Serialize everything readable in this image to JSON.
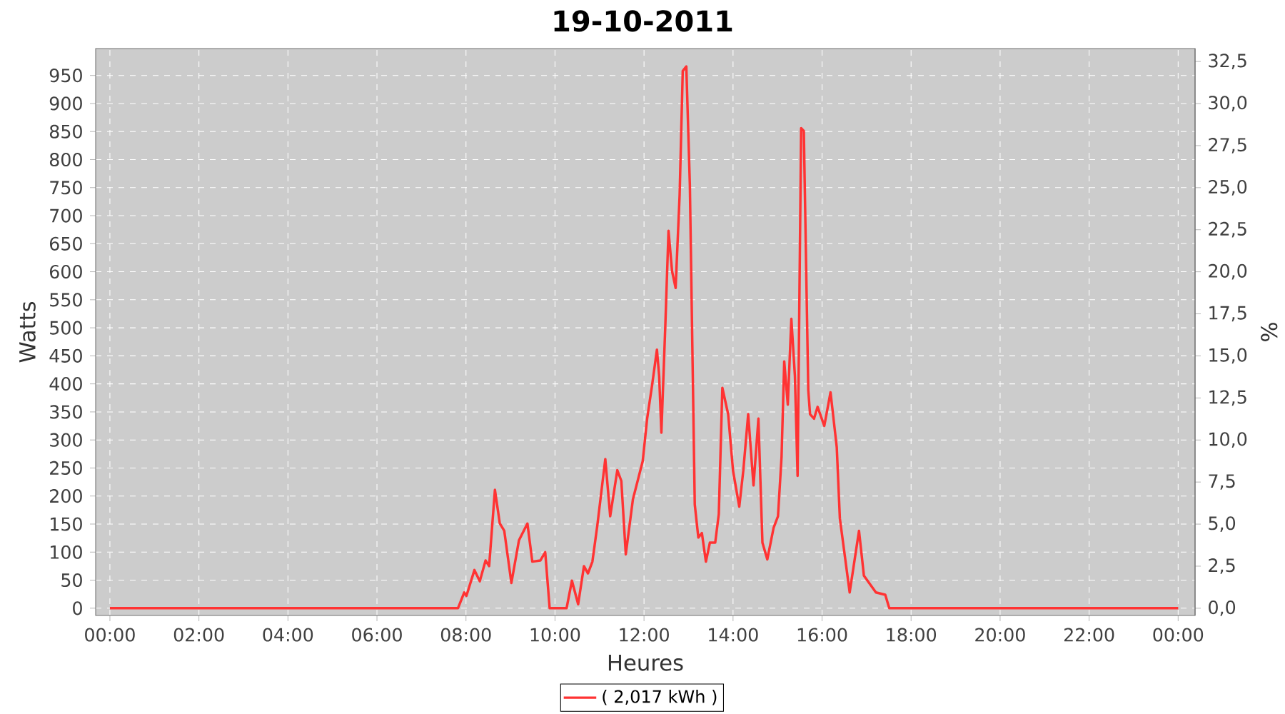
{
  "chart_data": {
    "type": "line",
    "title": "19-10-2011",
    "xlabel": "Heures",
    "ylabel": "Watts",
    "y2label": "%",
    "x": [
      0,
      7.82,
      7.96,
      8.01,
      8.19,
      8.31,
      8.44,
      8.52,
      8.65,
      8.76,
      8.86,
      9.02,
      9.19,
      9.38,
      9.49,
      9.67,
      9.78,
      9.88,
      10.26,
      10.38,
      10.52,
      10.65,
      10.74,
      10.84,
      10.95,
      11.13,
      11.24,
      11.4,
      11.49,
      11.59,
      11.75,
      11.97,
      12.07,
      12.18,
      12.29,
      12.34,
      12.39,
      12.48,
      12.55,
      12.63,
      12.71,
      12.8,
      12.87,
      12.95,
      13.03,
      13.14,
      13.22,
      13.3,
      13.39,
      13.48,
      13.6,
      13.68,
      13.76,
      13.89,
      14.0,
      14.14,
      14.23,
      14.34,
      14.46,
      14.57,
      14.66,
      14.77,
      14.91,
      15.01,
      15.09,
      15.15,
      15.23,
      15.31,
      15.39,
      15.45,
      15.53,
      15.59,
      15.69,
      15.73,
      15.82,
      15.9,
      16.05,
      16.19,
      16.33,
      16.4,
      16.62,
      16.83,
      16.94,
      17.21,
      17.42,
      17.51,
      24
    ],
    "series": [
      {
        "name": "( 2,017 kWh )",
        "color": "#ff3333",
        "values": [
          0,
          0,
          28,
          22,
          68,
          48,
          85,
          75,
          211,
          151,
          138,
          45,
          121,
          151,
          83,
          85,
          100,
          0,
          0,
          49,
          7,
          75,
          62,
          83,
          147,
          266,
          164,
          246,
          227,
          96,
          194,
          262,
          338,
          397,
          461,
          414,
          313,
          508,
          673,
          601,
          571,
          737,
          958,
          966,
          754,
          185,
          126,
          134,
          83,
          117,
          117,
          168,
          393,
          346,
          245,
          181,
          245,
          346,
          219,
          338,
          117,
          87,
          143,
          164,
          270,
          440,
          363,
          516,
          414,
          236,
          856,
          851,
          389,
          346,
          338,
          359,
          325,
          385,
          287,
          160,
          28,
          138,
          58,
          28,
          24,
          0,
          0
        ]
      }
    ],
    "xlim": [
      -0.32,
      24.38
    ],
    "ylim": [
      -13,
      998
    ],
    "y2lim": [
      -0.43,
      33.27
    ],
    "xticks": [
      {
        "value": 0,
        "label": "00:00"
      },
      {
        "value": 2,
        "label": "02:00"
      },
      {
        "value": 4,
        "label": "04:00"
      },
      {
        "value": 6,
        "label": "06:00"
      },
      {
        "value": 8,
        "label": "08:00"
      },
      {
        "value": 10,
        "label": "10:00"
      },
      {
        "value": 12,
        "label": "12:00"
      },
      {
        "value": 14,
        "label": "14:00"
      },
      {
        "value": 16,
        "label": "16:00"
      },
      {
        "value": 18,
        "label": "18:00"
      },
      {
        "value": 20,
        "label": "20:00"
      },
      {
        "value": 22,
        "label": "22:00"
      },
      {
        "value": 24,
        "label": "00:00"
      }
    ],
    "yticks": [
      0,
      50,
      100,
      150,
      200,
      250,
      300,
      350,
      400,
      450,
      500,
      550,
      600,
      650,
      700,
      750,
      800,
      850,
      900,
      950
    ],
    "y2ticks": [
      {
        "value": 0,
        "label": "0,0"
      },
      {
        "value": 2.5,
        "label": "2,5"
      },
      {
        "value": 5,
        "label": "5,0"
      },
      {
        "value": 7.5,
        "label": "7,5"
      },
      {
        "value": 10,
        "label": "10,0"
      },
      {
        "value": 12.5,
        "label": "12,5"
      },
      {
        "value": 15,
        "label": "15,0"
      },
      {
        "value": 17.5,
        "label": "17,5"
      },
      {
        "value": 20,
        "label": "20,0"
      },
      {
        "value": 22.5,
        "label": "22,5"
      },
      {
        "value": 25,
        "label": "25,0"
      },
      {
        "value": 27.5,
        "label": "27,5"
      },
      {
        "value": 30,
        "label": "30,0"
      },
      {
        "value": 32.5,
        "label": "32,5"
      }
    ],
    "grid": true,
    "legend": "bottom",
    "marker": "none",
    "line_style": "solid"
  }
}
